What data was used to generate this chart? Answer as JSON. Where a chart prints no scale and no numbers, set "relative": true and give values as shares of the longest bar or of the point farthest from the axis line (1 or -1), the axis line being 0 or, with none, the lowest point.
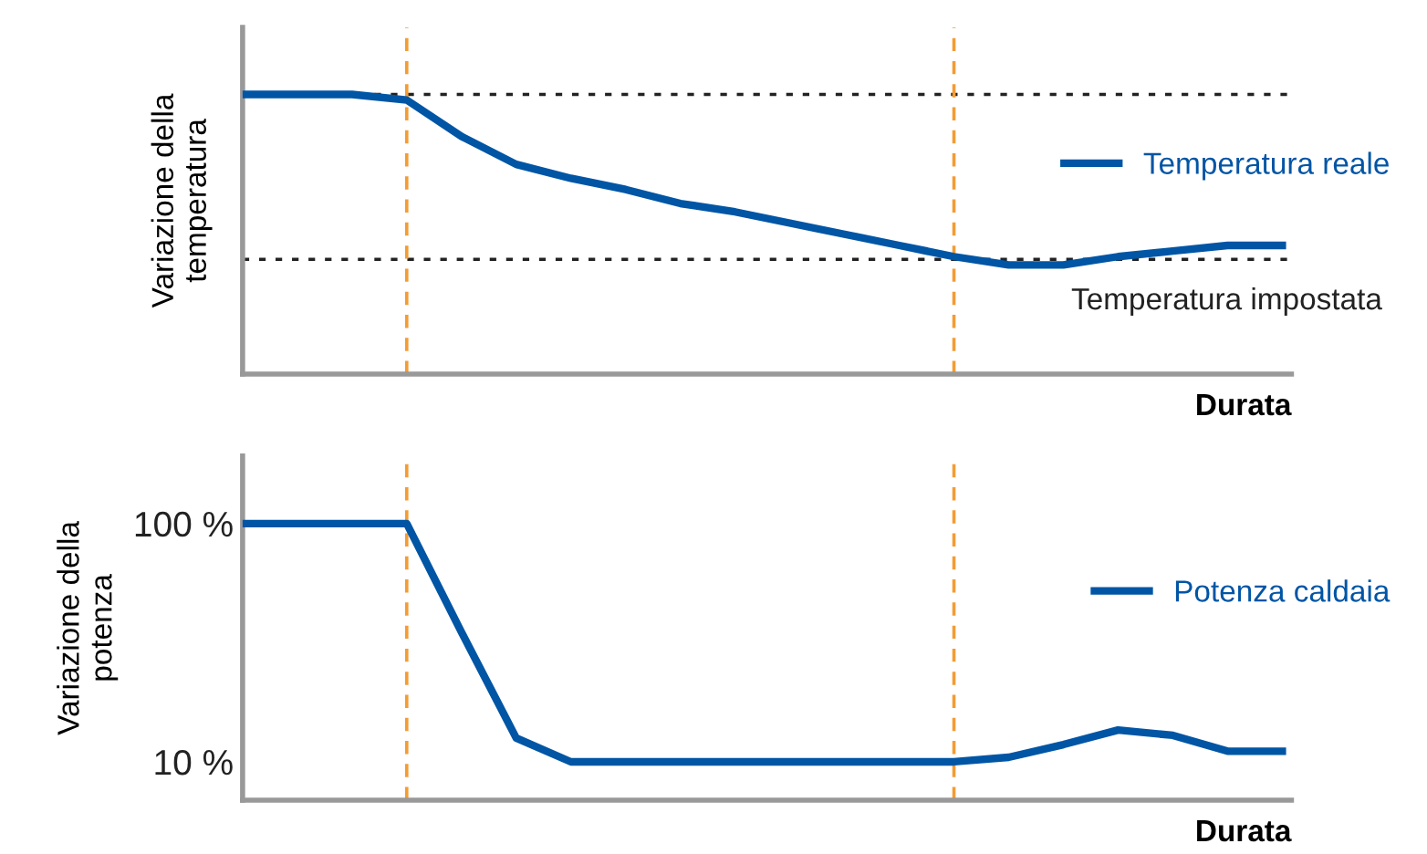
{
  "chart_data": [
    {
      "type": "line",
      "relative": true,
      "ylabel": "Variazione della\ntemperatura",
      "xlabel": "Durata",
      "categories": [
        null,
        null,
        null,
        null,
        null,
        null,
        null,
        null,
        null,
        null,
        null,
        null,
        null,
        null,
        null,
        null,
        null,
        null,
        null,
        null
      ],
      "series": [
        {
          "name": "Temperatura reale",
          "color": "#0055a5",
          "values": [
            1,
            1,
            1,
            0.98,
            0.85,
            0.75,
            0.7,
            0.66,
            0.61,
            0.58,
            0.54,
            0.5,
            0.46,
            0.42,
            0.39,
            0.39,
            0.42,
            0.44,
            0.46,
            0.46
          ]
        }
      ],
      "ref_lines": [
        {
          "axis": "y",
          "value": 1,
          "color": "#222222",
          "line_style": "dotted"
        },
        {
          "axis": "y",
          "value": 0.41,
          "label": "Temperatura impostata",
          "color": "#222222",
          "line_style": "dotted"
        }
      ],
      "legend": "right",
      "grid": false,
      "marker": "none",
      "line_style": "solid"
    },
    {
      "type": "line",
      "ylabel": "Variazione della\npotenza",
      "xlabel": "Durata",
      "categories": [
        null,
        null,
        null,
        null,
        null,
        null,
        null,
        null,
        null,
        null,
        null,
        null,
        null,
        null,
        null,
        null,
        null,
        null,
        null,
        null
      ],
      "series": [
        {
          "name": "Potenza caldaia",
          "color": "#0055a5",
          "values": [
            100,
            100,
            100,
            100,
            59,
            19,
            10,
            10,
            10,
            10,
            10,
            10,
            10,
            10,
            11.7,
            16.5,
            22,
            20,
            14,
            14
          ]
        }
      ],
      "ylim": [
        -4.5,
        125.5
      ],
      "yticks": [
        {
          "value": 100,
          "label": "100 %"
        },
        {
          "value": 10,
          "label": "10 %"
        }
      ],
      "legend": "right",
      "grid": false,
      "marker": "none",
      "line_style": "solid"
    }
  ]
}
